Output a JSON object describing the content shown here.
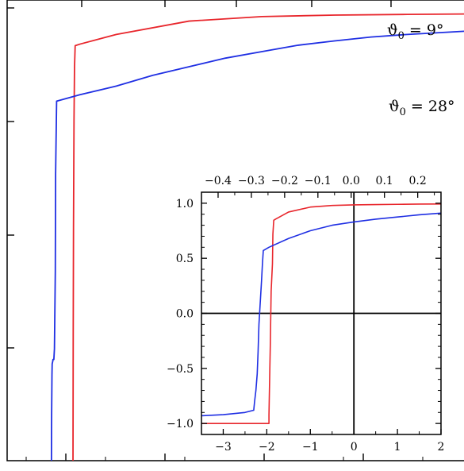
{
  "chart_data": [
    {
      "type": "line",
      "title": "",
      "xlabel": "",
      "ylabel": "",
      "xlim": [
        -0.35,
        0.28
      ],
      "ylim": [
        -1.08,
        1.06
      ],
      "grid": false,
      "xticks": [],
      "yticks": [],
      "series": [
        {
          "name": "ϑ0 = 9°",
          "color": "#e8262c",
          "label_parts": [
            "ϑ",
            "0",
            " = 9°"
          ],
          "x": [
            -0.2595,
            -0.2592,
            -0.2588,
            -0.2581,
            -0.2574,
            -0.2565,
            -0.25,
            -0.2,
            -0.1,
            0.0,
            0.1,
            0.2,
            0.28
          ],
          "y": [
            -1.08,
            -0.5,
            0.0,
            0.5,
            0.75,
            0.848,
            0.855,
            0.9,
            0.962,
            0.983,
            0.99,
            0.993,
            0.995
          ]
        },
        {
          "name": "ϑ0 = 28°",
          "color": "#1f2fe3",
          "label_parts": [
            "ϑ",
            "0",
            " = 28°"
          ],
          "x": [
            -0.2891,
            -0.289,
            -0.2884,
            -0.2881,
            -0.2874,
            -0.287,
            -0.2866,
            -0.2858,
            -0.285,
            -0.2838,
            -0.2834,
            -0.282,
            -0.25,
            -0.2,
            -0.15,
            -0.1,
            -0.05,
            0.0,
            0.05,
            0.1,
            0.15,
            0.2,
            0.28
          ],
          "y": [
            -1.08,
            -0.92,
            -0.68,
            -0.63,
            -0.62,
            -0.61,
            -0.61,
            -0.61,
            -0.56,
            -0.2,
            0.25,
            0.59,
            0.62,
            0.66,
            0.71,
            0.75,
            0.79,
            0.82,
            0.85,
            0.87,
            0.888,
            0.9,
            0.915
          ]
        }
      ]
    },
    {
      "type": "line",
      "title": "",
      "xlabel": "",
      "ylabel": "",
      "xlim": [
        -3.5,
        2.0
      ],
      "ylim": [
        -1.1,
        1.1
      ],
      "grid": false,
      "xticks": [
        -3,
        -2,
        -1,
        0,
        1,
        2
      ],
      "xtick_labels": [
        "−3",
        "−2",
        "−1",
        "0",
        "1",
        "2"
      ],
      "yticks": [
        -1.0,
        -0.5,
        0.0,
        0.5,
        1.0
      ],
      "ytick_labels": [
        "−1.0",
        "−0.5",
        "0.0",
        "0.5",
        "1.0"
      ],
      "top_xlim": [
        -0.45,
        0.27
      ],
      "top_xticks": [
        -0.4,
        -0.3,
        -0.2,
        -0.1,
        0.0,
        0.1,
        0.2
      ],
      "top_xtick_labels": [
        "−0.4",
        "−0.3",
        "−0.2",
        "−0.1",
        "0.0",
        "0.1",
        "0.2"
      ],
      "reference_lines": {
        "x": 0,
        "y": 0
      },
      "series": [
        {
          "name": "ϑ0 = 9°",
          "color": "#e8262c",
          "x": [
            -3.5,
            -2.8,
            -2.2,
            -1.95,
            -1.95,
            -1.93,
            -1.92,
            -1.91,
            -1.9,
            -1.87,
            -1.86,
            -1.84,
            -1.8,
            -1.5,
            -1.0,
            -0.5,
            0.0,
            0.5,
            1.0,
            1.5,
            2.0
          ],
          "y": [
            -1.0,
            -1.0,
            -1.0,
            -1.0,
            -0.92,
            -0.5,
            -0.3,
            -0.05,
            0.2,
            0.45,
            0.72,
            0.845,
            0.855,
            0.92,
            0.965,
            0.98,
            0.985,
            0.988,
            0.99,
            0.992,
            0.993
          ]
        },
        {
          "name": "ϑ0 = 28°",
          "color": "#1f2fe3",
          "x": [
            -3.5,
            -3.0,
            -2.5,
            -2.3,
            -2.28,
            -2.25,
            -2.22,
            -2.2,
            -2.18,
            -2.15,
            -2.12,
            -2.1,
            -2.08,
            -1.95,
            -1.5,
            -1.0,
            -0.5,
            0.0,
            0.5,
            1.0,
            1.5,
            2.0
          ],
          "y": [
            -0.93,
            -0.92,
            -0.9,
            -0.88,
            -0.8,
            -0.7,
            -0.55,
            -0.35,
            -0.1,
            0.1,
            0.3,
            0.45,
            0.57,
            0.6,
            0.68,
            0.75,
            0.8,
            0.83,
            0.855,
            0.875,
            0.895,
            0.91
          ]
        }
      ]
    }
  ]
}
